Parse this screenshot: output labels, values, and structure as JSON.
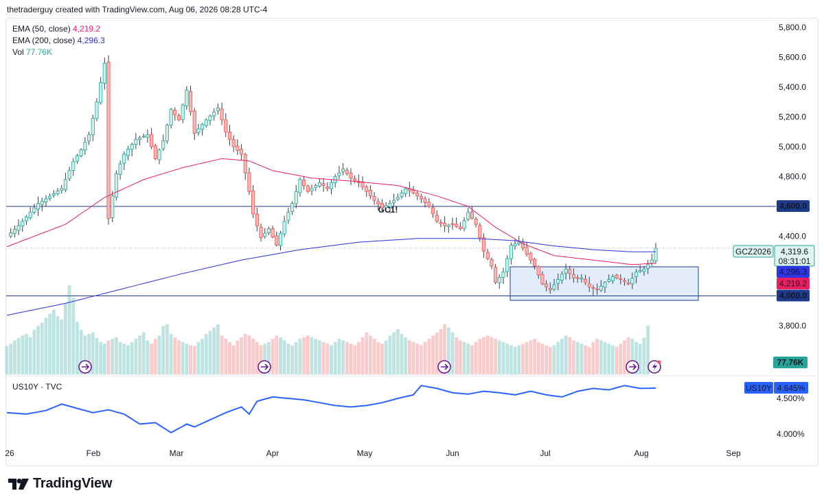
{
  "header": {
    "credit": "thetraderguy created with TradingView.com, Aug 06, 2026 08:28 UTC-4"
  },
  "legend": {
    "ema50_label": "EMA (50, close)",
    "ema50_value": "4,219.2",
    "ema200_label": "EMA (200, close)",
    "ema200_value": "4,296.3",
    "vol_label": "Vol",
    "vol_value": "77.76K",
    "us10y_label": "US10Y · TVC"
  },
  "colors": {
    "up": "#26a69a",
    "down": "#ef5350",
    "ema50": "#e91e63",
    "ema200": "#2a2ee0",
    "us10y": "#2962ff",
    "level": "#1e3a8a",
    "box_fill": "#e3ecfb"
  },
  "badges": {
    "symbol": "GCZ2026",
    "price": "4,319.6",
    "countdown": "08:31:01",
    "ema200": "4,296.3",
    "ema50": "4,219.2",
    "level_4600": "4,600.0",
    "level_4000": "4,000.0",
    "volume": "77.76K",
    "us10y_symbol": "US10Y",
    "us10y_price": "4.645%"
  },
  "watermark": "GC1!",
  "footer": {
    "brand": "TradingView"
  },
  "chart_data": [
    {
      "type": "candlestick",
      "title": "",
      "y_ticks": [
        "5,800.0",
        "5,600.0",
        "5,400.0",
        "5,200.0",
        "5,000.0",
        "4,800.0",
        "4,400.0",
        "3,800.0"
      ],
      "ylim": [
        3780,
        5860
      ],
      "x_ticks": [
        "26",
        "Feb",
        "Mar",
        "Apr",
        "May",
        "Jun",
        "Jul",
        "Aug",
        "Sep"
      ],
      "horizontal_levels": [
        4600,
        4000
      ],
      "consolidation_box": {
        "low": 3970,
        "high": 4195,
        "from": "Jun 22",
        "to": "Aug 24"
      },
      "price_path": [
        [
          0,
          4400
        ],
        [
          3,
          4470
        ],
        [
          6,
          4560
        ],
        [
          8,
          4620
        ],
        [
          10,
          4650
        ],
        [
          14,
          4720
        ],
        [
          17,
          4900
        ],
        [
          19,
          4980
        ],
        [
          21,
          5080
        ],
        [
          23,
          5300
        ],
        [
          25,
          5560
        ],
        [
          26,
          4520
        ],
        [
          28,
          4820
        ],
        [
          30,
          4950
        ],
        [
          33,
          5050
        ],
        [
          36,
          5080
        ],
        [
          38,
          4920
        ],
        [
          40,
          5040
        ],
        [
          42,
          5250
        ],
        [
          44,
          5180
        ],
        [
          46,
          5380
        ],
        [
          48,
          5090
        ],
        [
          51,
          5180
        ],
        [
          54,
          5260
        ],
        [
          56,
          5100
        ],
        [
          58,
          5000
        ],
        [
          60,
          4950
        ],
        [
          62,
          4700
        ],
        [
          63,
          4550
        ],
        [
          65,
          4390
        ],
        [
          67,
          4450
        ],
        [
          69,
          4340
        ],
        [
          71,
          4500
        ],
        [
          73,
          4620
        ],
        [
          75,
          4780
        ],
        [
          77,
          4700
        ],
        [
          80,
          4760
        ],
        [
          82,
          4720
        ],
        [
          84,
          4800
        ],
        [
          86,
          4850
        ],
        [
          88,
          4790
        ],
        [
          90,
          4760
        ],
        [
          92,
          4700
        ],
        [
          94,
          4640
        ],
        [
          96,
          4590
        ],
        [
          98,
          4620
        ],
        [
          100,
          4660
        ],
        [
          102,
          4720
        ],
        [
          104,
          4690
        ],
        [
          106,
          4650
        ],
        [
          108,
          4600
        ],
        [
          110,
          4500
        ],
        [
          112,
          4470
        ],
        [
          114,
          4480
        ],
        [
          116,
          4450
        ],
        [
          118,
          4560
        ],
        [
          120,
          4480
        ],
        [
          122,
          4300
        ],
        [
          124,
          4200
        ],
        [
          125,
          4090
        ],
        [
          127,
          4160
        ],
        [
          129,
          4340
        ],
        [
          131,
          4360
        ],
        [
          133,
          4280
        ],
        [
          135,
          4200
        ],
        [
          137,
          4080
        ],
        [
          139,
          4040
        ],
        [
          141,
          4110
        ],
        [
          143,
          4180
        ],
        [
          145,
          4120
        ],
        [
          147,
          4120
        ],
        [
          149,
          4060
        ],
        [
          151,
          4040
        ],
        [
          153,
          4090
        ],
        [
          155,
          4130
        ],
        [
          157,
          4110
        ],
        [
          159,
          4080
        ],
        [
          161,
          4160
        ],
        [
          163,
          4180
        ],
        [
          165,
          4240
        ],
        [
          166,
          4320
        ]
      ],
      "volume": [
        35,
        38,
        42,
        45,
        48,
        50,
        46,
        55,
        60,
        64,
        70,
        75,
        80,
        72,
        68,
        88,
        110,
        95,
        65,
        55,
        48,
        50,
        52,
        45,
        40,
        38,
        42,
        44,
        46,
        40,
        38,
        36,
        40,
        44,
        48,
        52,
        42,
        38,
        44,
        48,
        60,
        62,
        50,
        46,
        42,
        40,
        38,
        36,
        35,
        40,
        44,
        50,
        54,
        58,
        62,
        48,
        44,
        40,
        36,
        42,
        46,
        50,
        48,
        44,
        40,
        36,
        38,
        40,
        44,
        48,
        46,
        42,
        38,
        36,
        40,
        44,
        46,
        48,
        46,
        44,
        42,
        40,
        38,
        36,
        40,
        44,
        42,
        40,
        38,
        36,
        40,
        46,
        52,
        48,
        44,
        40,
        38,
        42,
        48,
        52,
        56,
        50,
        46,
        42,
        40,
        38,
        36,
        40,
        44,
        48,
        52,
        56,
        62,
        58,
        52,
        46,
        42,
        40,
        38,
        36,
        40,
        44,
        46,
        48,
        46,
        44,
        42,
        40,
        38,
        36,
        34,
        36,
        38,
        40,
        42,
        44,
        40,
        38,
        36,
        34,
        36,
        40,
        44,
        48,
        46,
        42,
        40,
        38,
        36,
        34,
        40,
        44,
        42,
        40,
        38,
        36,
        34,
        38,
        42,
        46,
        44,
        40,
        38,
        45,
        60
      ],
      "series": [
        {
          "name": "EMA (50, close)",
          "values": [
            [
              0,
              4330
            ],
            [
              15,
              4480
            ],
            [
              25,
              4660
            ],
            [
              35,
              4780
            ],
            [
              45,
              4860
            ],
            [
              55,
              4920
            ],
            [
              62,
              4905
            ],
            [
              68,
              4840
            ],
            [
              78,
              4790
            ],
            [
              88,
              4770
            ],
            [
              100,
              4740
            ],
            [
              110,
              4670
            ],
            [
              118,
              4600
            ],
            [
              125,
              4460
            ],
            [
              132,
              4350
            ],
            [
              140,
              4270
            ],
            [
              150,
              4240
            ],
            [
              160,
              4210
            ],
            [
              166,
              4219
            ]
          ]
        },
        {
          "name": "EMA (200, close)",
          "values": [
            [
              0,
              3870
            ],
            [
              15,
              3950
            ],
            [
              30,
              4050
            ],
            [
              45,
              4150
            ],
            [
              60,
              4240
            ],
            [
              75,
              4310
            ],
            [
              90,
              4360
            ],
            [
              105,
              4385
            ],
            [
              120,
              4385
            ],
            [
              130,
              4370
            ],
            [
              140,
              4335
            ],
            [
              150,
              4310
            ],
            [
              160,
              4295
            ],
            [
              166,
              4296
            ]
          ]
        }
      ]
    },
    {
      "type": "line",
      "title": "",
      "y_ticks": [
        "4.500%",
        "4.000%"
      ],
      "ylim": [
        3.9,
        4.72
      ],
      "series": [
        {
          "name": "US10Y",
          "values": [
            [
              0,
              4.3
            ],
            [
              5,
              4.28
            ],
            [
              10,
              4.33
            ],
            [
              14,
              4.42
            ],
            [
              18,
              4.36
            ],
            [
              22,
              4.3
            ],
            [
              26,
              4.34
            ],
            [
              30,
              4.28
            ],
            [
              34,
              4.14
            ],
            [
              38,
              4.16
            ],
            [
              42,
              4.02
            ],
            [
              46,
              4.14
            ],
            [
              48,
              4.1
            ],
            [
              52,
              4.2
            ],
            [
              56,
              4.3
            ],
            [
              60,
              4.38
            ],
            [
              62,
              4.28
            ],
            [
              64,
              4.46
            ],
            [
              68,
              4.52
            ],
            [
              72,
              4.5
            ],
            [
              76,
              4.48
            ],
            [
              80,
              4.44
            ],
            [
              84,
              4.4
            ],
            [
              88,
              4.38
            ],
            [
              92,
              4.4
            ],
            [
              96,
              4.44
            ],
            [
              100,
              4.5
            ],
            [
              104,
              4.55
            ],
            [
              106,
              4.68
            ],
            [
              110,
              4.64
            ],
            [
              114,
              4.58
            ],
            [
              118,
              4.56
            ],
            [
              122,
              4.6
            ],
            [
              126,
              4.58
            ],
            [
              130,
              4.55
            ],
            [
              134,
              4.6
            ],
            [
              138,
              4.55
            ],
            [
              142,
              4.52
            ],
            [
              146,
              4.6
            ],
            [
              150,
              4.64
            ],
            [
              154,
              4.62
            ],
            [
              158,
              4.68
            ],
            [
              162,
              4.64
            ],
            [
              166,
              4.645
            ]
          ]
        }
      ]
    }
  ]
}
